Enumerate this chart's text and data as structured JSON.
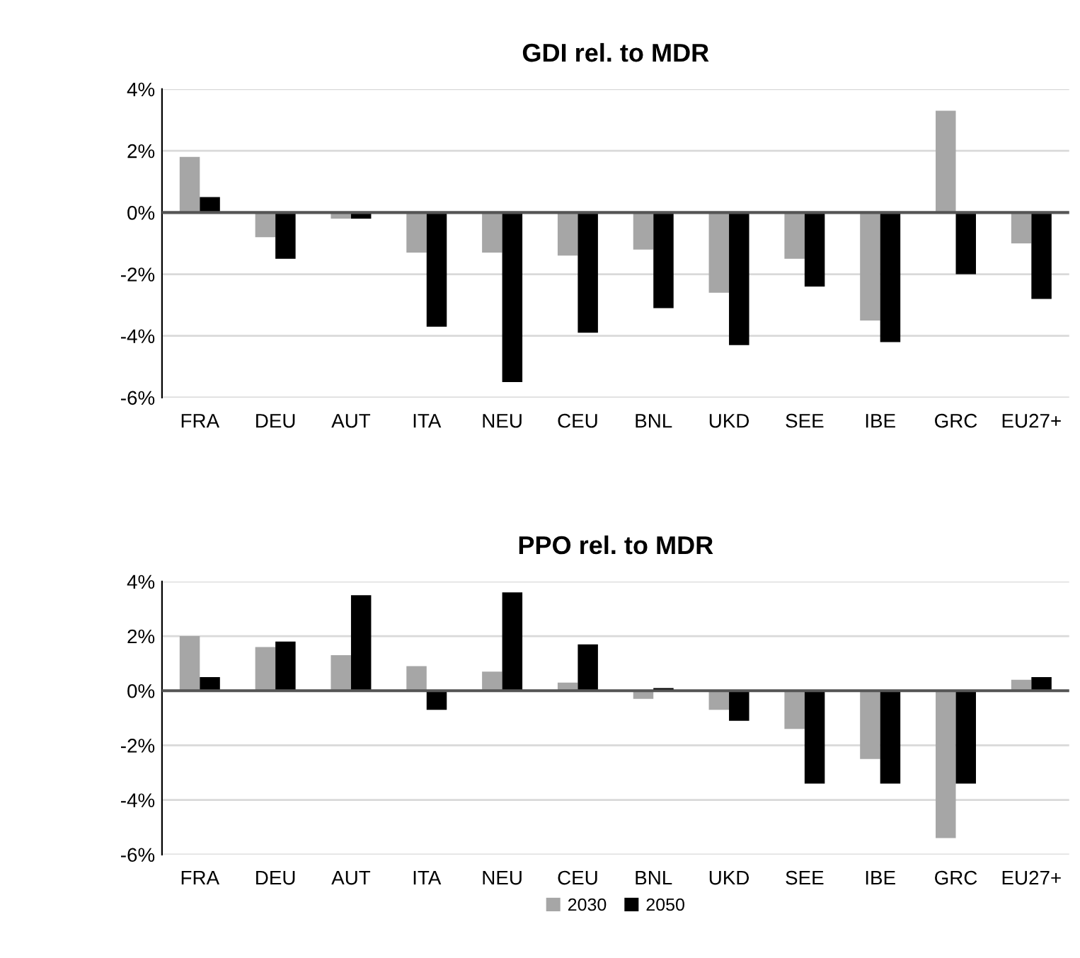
{
  "chart_data": [
    {
      "type": "bar",
      "title": "GDI rel. to MDR",
      "categories": [
        "FRA",
        "DEU",
        "AUT",
        "ITA",
        "NEU",
        "CEU",
        "BNL",
        "UKD",
        "SEE",
        "IBE",
        "GRC",
        "EU27+"
      ],
      "series": [
        {
          "color": "#a6a6a6",
          "values": [
            1.8,
            -0.8,
            -0.2,
            -1.3,
            -1.3,
            -1.4,
            -1.2,
            -2.6,
            -1.5,
            -3.5,
            3.3,
            -1.0
          ]
        },
        {
          "color": "#000000",
          "values": [
            0.5,
            -1.5,
            -0.2,
            -3.7,
            -5.5,
            -3.9,
            -3.1,
            -4.3,
            -2.4,
            -4.2,
            -2.0,
            -2.8
          ]
        }
      ],
      "ylim": [
        -6,
        4
      ],
      "yticks": [
        {
          "value": -6,
          "label": "-6%"
        },
        {
          "value": -4,
          "label": "-4%"
        },
        {
          "value": -2,
          "label": "-2%"
        },
        {
          "value": 0,
          "label": "0%"
        },
        {
          "value": 2,
          "label": "2%"
        },
        {
          "value": 4,
          "label": "4%"
        }
      ],
      "grid": "y"
    },
    {
      "type": "bar",
      "title": "PPO rel. to MDR",
      "categories": [
        "FRA",
        "DEU",
        "AUT",
        "ITA",
        "NEU",
        "CEU",
        "BNL",
        "UKD",
        "SEE",
        "IBE",
        "GRC",
        "EU27+"
      ],
      "series": [
        {
          "name": "2030",
          "color": "#a6a6a6",
          "values": [
            2.0,
            1.6,
            1.3,
            0.9,
            0.7,
            0.3,
            -0.3,
            -0.7,
            -1.4,
            -2.5,
            -5.4,
            0.4
          ]
        },
        {
          "name": "2050",
          "color": "#000000",
          "values": [
            0.5,
            1.8,
            3.5,
            -0.7,
            3.6,
            1.7,
            0.1,
            -1.1,
            -3.4,
            -3.4,
            -3.4,
            0.5
          ]
        }
      ],
      "ylim": [
        -6,
        4
      ],
      "yticks": [
        {
          "value": -6,
          "label": "-6%"
        },
        {
          "value": -4,
          "label": "-4%"
        },
        {
          "value": -2,
          "label": "-2%"
        },
        {
          "value": 0,
          "label": "0%"
        },
        {
          "value": 2,
          "label": "2%"
        },
        {
          "value": 4,
          "label": "4%"
        }
      ],
      "grid": "y",
      "legend": "bottom"
    }
  ]
}
